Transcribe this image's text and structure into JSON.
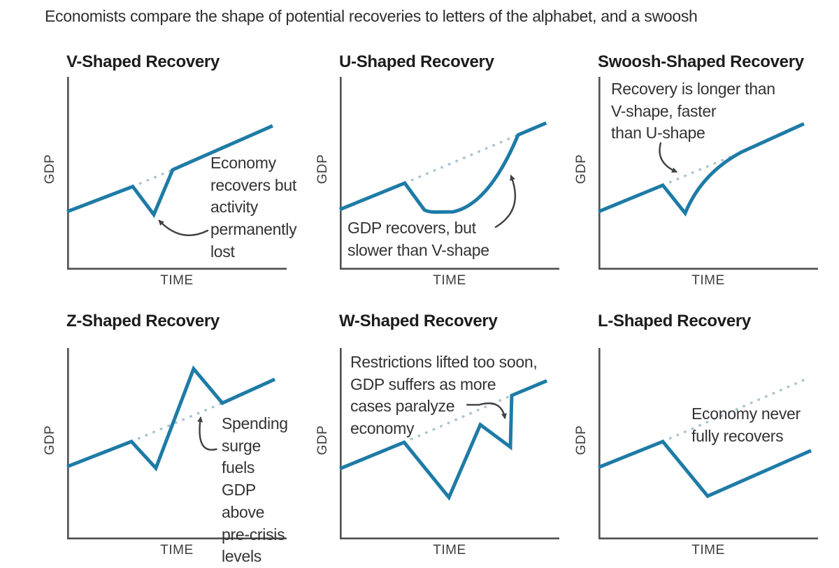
{
  "page_title": "Economists compare the shape of potential recoveries to letters of the alphabet, and a swoosh",
  "colors": {
    "gdp_line": "#1e7ba6",
    "trend_dotted": "#a9c4d2",
    "axis": "#4f5052",
    "arrow": "#414042",
    "title_text": "#1c1c1c",
    "annotation_text": "#333333"
  },
  "chart_data": [
    {
      "type": "line",
      "title": "V-Shaped Recovery",
      "xlabel": "TIME",
      "ylabel": "GDP",
      "grid": false,
      "axis_ticks": "none",
      "series": [
        {
          "name": "gdp-path",
          "style": "solid",
          "path": [
            [
              "M",
              0,
              30.1
            ],
            [
              "L",
              29.9,
              43.1
            ],
            [
              "L",
              39.5,
              28.6
            ],
            [
              "L",
              48.1,
              51.8
            ],
            [
              "L",
              93.6,
              74.6
            ]
          ]
        },
        {
          "name": "pre-crisis-trend",
          "style": "dotted",
          "path": [
            [
              "M",
              29.9,
              43.1
            ],
            [
              "L",
              48.1,
              51.8
            ]
          ]
        }
      ],
      "annotation": {
        "text": "Economy\nrecovers but\nactivity\npermanently\nlost",
        "pos": [
          205,
          108
        ],
        "arrow": [
          [
            "M",
            64,
            20.3
          ],
          [
            "Q",
            52,
            13.5,
            42,
            25.4
          ]
        ]
      }
    },
    {
      "type": "line",
      "title": "U-Shaped Recovery",
      "xlabel": "TIME",
      "ylabel": "GDP",
      "grid": false,
      "axis_ticks": "none",
      "series": [
        {
          "name": "gdp-path",
          "style": "solid",
          "path": [
            [
              "M",
              0,
              31.2
            ],
            [
              "L",
              29.6,
              44.9
            ],
            [
              "L",
              38.5,
              31.0
            ],
            [
              "Q",
              40.5,
              29.8,
              44,
              29.9
            ],
            [
              "L",
              51.6,
              30.0
            ],
            [
              "Q",
              68,
              34,
              81.2,
              69.9
            ],
            [
              "L",
              94,
              76.1
            ]
          ]
        },
        {
          "name": "pre-crisis-trend",
          "style": "dotted",
          "path": [
            [
              "M",
              29.6,
              44.9
            ],
            [
              "L",
              81.2,
              69.9
            ]
          ]
        }
      ],
      "annotation": {
        "text": "GDP recovers, but\nslower than V-shape",
        "pos": [
          11,
          201
        ],
        "arrow": [
          [
            "M",
            71,
            22.1
          ],
          [
            "Q",
            84,
            31,
            78,
            48.6
          ]
        ]
      }
    },
    {
      "type": "line",
      "title": "Swoosh-Shaped Recovery",
      "xlabel": "TIME",
      "ylabel": "GDP",
      "grid": false,
      "axis_ticks": "none",
      "series": [
        {
          "name": "gdp-path",
          "style": "solid",
          "path": [
            [
              "M",
              0,
              30.1
            ],
            [
              "L",
              29.3,
              43.8
            ],
            [
              "L",
              39.5,
              29.3
            ],
            [
              "Q",
              47,
              50,
              65,
              60.9
            ],
            [
              "L",
              93.6,
              75.7
            ]
          ]
        },
        {
          "name": "pre-crisis-trend",
          "style": "dotted",
          "path": [
            [
              "M",
              29.3,
              43.8
            ],
            [
              "L",
              65,
              60.9
            ]
          ]
        }
      ],
      "annotation": {
        "text": "Recovery is longer than\nV-shape, faster\nthan U-shape",
        "pos": [
          18,
          2
        ],
        "arrow": [
          [
            "M",
            28.3,
            65.6
          ],
          [
            "Q",
            26,
            55.5,
            35.4,
            50.8
          ]
        ]
      }
    },
    {
      "type": "line",
      "title": "Z-Shaped Recovery",
      "xlabel": "TIME",
      "ylabel": "GDP",
      "grid": false,
      "axis_ticks": "none",
      "series": [
        {
          "name": "gdp-path",
          "style": "solid",
          "path": [
            [
              "M",
              0,
              38.0
            ],
            [
              "L",
              29.3,
              51.1
            ],
            [
              "L",
              40.4,
              37.2
            ],
            [
              "L",
              57.6,
              89.1
            ],
            [
              "L",
              70.7,
              71.2
            ],
            [
              "L",
              94.6,
              83.6
            ]
          ]
        },
        {
          "name": "pre-crisis-trend",
          "style": "dotted",
          "path": [
            [
              "M",
              29.3,
              51.1
            ],
            [
              "L",
              70.7,
              71.2
            ]
          ]
        }
      ],
      "annotation": {
        "text": "Spending\nsurge fuels\nGDP above\npre-crisis\nlevels",
        "pos": [
          221,
          93
        ],
        "arrow": [
          [
            "M",
            68,
            47.1
          ],
          [
            "Q",
            58.5,
            44.5,
            60.8,
            63.5
          ]
        ]
      }
    },
    {
      "type": "line",
      "title": "W-Shaped Recovery",
      "xlabel": "TIME",
      "ylabel": "GDP",
      "grid": false,
      "axis_ticks": "none",
      "series": [
        {
          "name": "gdp-path",
          "style": "solid",
          "path": [
            [
              "M",
              0,
              36.9
            ],
            [
              "L",
              29.3,
              50.7
            ],
            [
              "L",
              49.7,
              21.9
            ],
            [
              "L",
              64,
              59.9
            ],
            [
              "L",
              77.7,
              48.2
            ],
            [
              "L",
              78.3,
              75.2
            ],
            [
              "L",
              94.3,
              82.8
            ]
          ]
        },
        {
          "name": "pre-crisis-trend",
          "style": "dotted",
          "path": [
            [
              "M",
              29.3,
              50.7
            ],
            [
              "L",
              78.3,
              75.2
            ]
          ]
        }
      ],
      "annotation": {
        "text": "Restrictions lifted too soon,\nGDP suffers as more\ncases paralyze\neconomy",
        "pos": [
          15,
          5
        ],
        "arrow": [
          [
            "M",
            58,
            70.3
          ],
          [
            "L",
            63.5,
            70.3
          ],
          [
            "Q",
            73.5,
            73.5,
            75.2,
            63.5
          ]
        ]
      }
    },
    {
      "type": "line",
      "title": "L-Shaped Recovery",
      "xlabel": "TIME",
      "ylabel": "GDP",
      "grid": false,
      "axis_ticks": "none",
      "series": [
        {
          "name": "gdp-path",
          "style": "solid",
          "path": [
            [
              "M",
              0,
              37.6
            ],
            [
              "L",
              29.3,
              51.1
            ],
            [
              "L",
              49.7,
              22.6
            ],
            [
              "L",
              96.8,
              46.4
            ]
          ]
        },
        {
          "name": "pre-crisis-trend",
          "style": "dotted",
          "path": [
            [
              "M",
              29.3,
              51.1
            ],
            [
              "L",
              94.3,
              83.6
            ]
          ]
        }
      ],
      "annotation": {
        "text": "Economy never\nfully recovers",
        "pos": [
          133,
          79
        ],
        "arrow": null
      }
    }
  ]
}
